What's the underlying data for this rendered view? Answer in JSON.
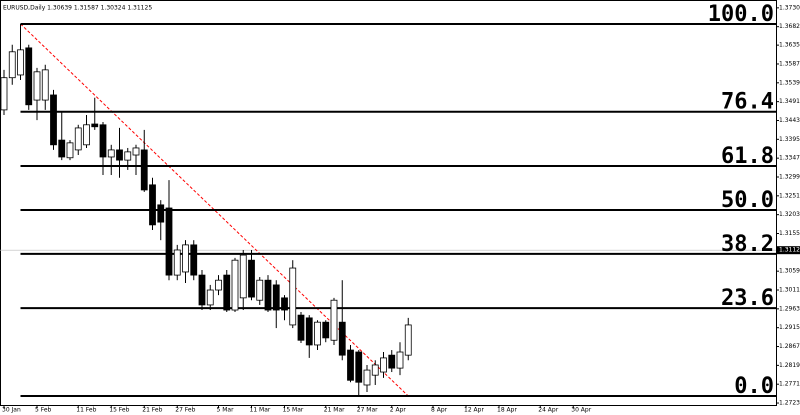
{
  "chart_data": {
    "type": "candlestick",
    "title": "EURUSD,Daily  1.30639 1.31587 1.30324 1.31125",
    "categories": [
      "30 Jan",
      null,
      null,
      null,
      "5 Feb",
      null,
      null,
      null,
      null,
      "11 Feb",
      null,
      null,
      null,
      "15 Feb",
      null,
      null,
      null,
      "21 Feb",
      null,
      null,
      null,
      "27 Feb",
      null,
      null,
      null,
      null,
      "5 Mar",
      null,
      null,
      null,
      "11 Mar",
      null,
      null,
      null,
      "15 Mar",
      null,
      null,
      null,
      null,
      "21 Mar",
      null,
      null,
      null,
      "27 Mar",
      null,
      null,
      null,
      "2 Apr",
      null,
      null,
      null,
      null,
      "8 Apr",
      null,
      null,
      null,
      "12 Apr",
      null,
      null,
      null,
      "18 Apr",
      null,
      null,
      null,
      null,
      "24 Apr",
      null,
      null,
      null,
      "30 Apr",
      null,
      null
    ],
    "open": [
      1.347,
      1.3552,
      1.3559,
      1.3628,
      1.3495,
      1.3495,
      1.3508,
      1.3393,
      1.3348,
      1.3368,
      1.3381,
      1.3434,
      1.3432,
      1.335,
      1.3368,
      1.3342,
      1.3355,
      1.3368,
      1.3279,
      1.3228,
      1.322,
      1.3049,
      1.3057,
      1.3126,
      1.3049,
      1.2973,
      1.3011,
      1.3049,
      1.296,
      1.2991,
      1.3087,
      1.2985,
      1.3036,
      1.3024,
      1.2991,
      1.2922,
      1.2947,
      1.294,
      1.2871,
      1.2929,
      1.2883,
      1.2929,
      1.2858,
      1.2853,
      1.2769,
      1.2794,
      1.2802,
      1.2845,
      1.2812,
      1.2845,
      null,
      null,
      null,
      null,
      null,
      null,
      null,
      null,
      null,
      null,
      null,
      null,
      null,
      null,
      null,
      null,
      null,
      null,
      null,
      null,
      null,
      null
    ],
    "high": [
      1.3572,
      1.3636,
      1.3689,
      1.3636,
      1.3577,
      1.3585,
      1.3521,
      1.3465,
      1.3393,
      1.3432,
      1.3457,
      1.3501,
      1.3439,
      1.3381,
      1.3424,
      1.3373,
      1.3381,
      1.3419,
      1.3297,
      1.324,
      1.3291,
      1.3126,
      1.3138,
      1.3138,
      1.3062,
      1.3024,
      1.3049,
      1.3062,
      1.3093,
      1.3113,
      1.3113,
      1.3044,
      1.3049,
      1.3036,
      1.2998,
      1.3087,
      1.2955,
      1.2947,
      1.2934,
      1.2934,
      1.2991,
      1.3036,
      1.2871,
      1.2858,
      1.282,
      1.2832,
      1.2853,
      1.2858,
      1.2878,
      1.294,
      null,
      null,
      null,
      null,
      null,
      null,
      null,
      null,
      null,
      null,
      null,
      null,
      null,
      null,
      null,
      null,
      null,
      null,
      null,
      null,
      null,
      null
    ],
    "low": [
      1.3457,
      1.3534,
      1.3546,
      1.347,
      1.3444,
      1.347,
      1.3368,
      1.3342,
      1.3342,
      1.3355,
      1.3373,
      1.3419,
      1.3304,
      1.3304,
      1.3297,
      1.3317,
      1.3304,
      1.3261,
      1.3164,
      1.3138,
      1.3036,
      1.3036,
      1.3029,
      1.3036,
      1.296,
      1.296,
      1.2998,
      1.2955,
      1.2955,
      1.296,
      1.2985,
      1.2973,
      1.2955,
      1.2914,
      1.2934,
      1.2914,
      1.2876,
      1.2838,
      1.2858,
      1.2878,
      1.2871,
      1.2832,
      1.2776,
      1.2741,
      1.2751,
      1.2769,
      1.2787,
      1.2802,
      1.2794,
      1.2832,
      null,
      null,
      null,
      null,
      null,
      null,
      null,
      null,
      null,
      null,
      null,
      null,
      null,
      null,
      null,
      null,
      null,
      null,
      null,
      null,
      null,
      null
    ],
    "close": [
      1.3552,
      1.3618,
      1.3623,
      1.3483,
      1.3567,
      1.3572,
      1.3381,
      1.335,
      1.3386,
      1.3424,
      1.3432,
      1.3427,
      1.335,
      1.3368,
      1.3342,
      1.3363,
      1.3373,
      1.3266,
      1.3177,
      1.3184,
      1.3049,
      1.3113,
      1.3126,
      1.3049,
      1.2973,
      1.3011,
      1.3036,
      1.296,
      1.3087,
      1.31,
      1.2993,
      1.3036,
      1.296,
      1.296,
      1.296,
      1.3067,
      1.2883,
      1.2871,
      1.2929,
      1.2889,
      1.2985,
      1.2845,
      1.2781,
      1.2776,
      1.2807,
      1.282,
      1.2838,
      1.2812,
      1.2853,
      1.2922,
      null,
      null,
      null,
      null,
      null,
      null,
      null,
      null,
      null,
      null,
      null,
      null,
      null,
      null,
      null,
      null,
      null,
      null,
      null,
      null,
      null,
      null
    ],
    "up_color": "#ffffff",
    "down_color": "#000000",
    "ylim": [
      1.2718,
      1.375
    ],
    "yticks": [
      {
        "value": 1.373,
        "label": "1.37300"
      },
      {
        "value": 1.3682,
        "label": "1.36820"
      },
      {
        "value": 1.3635,
        "label": "1.36350"
      },
      {
        "value": 1.3587,
        "label": "1.35870"
      },
      {
        "value": 1.3539,
        "label": "1.35390"
      },
      {
        "value": 1.3491,
        "label": "1.34910"
      },
      {
        "value": 1.3443,
        "label": "1.34430"
      },
      {
        "value": 1.3395,
        "label": "1.33950"
      },
      {
        "value": 1.3347,
        "label": "1.33470"
      },
      {
        "value": 1.3299,
        "label": "1.32990"
      },
      {
        "value": 1.3251,
        "label": "1.32510"
      },
      {
        "value": 1.3203,
        "label": "1.32030"
      },
      {
        "value": 1.3155,
        "label": "1.31550"
      },
      {
        "value": 1.3059,
        "label": "1.30590"
      },
      {
        "value": 1.3011,
        "label": "1.30110"
      },
      {
        "value": 1.2963,
        "label": "1.29630"
      },
      {
        "value": 1.2915,
        "label": "1.29150"
      },
      {
        "value": 1.2867,
        "label": "1.28670"
      },
      {
        "value": 1.2819,
        "label": "1.28190"
      },
      {
        "value": 1.2771,
        "label": "1.27710"
      },
      {
        "value": 1.2723,
        "label": "1.27230"
      }
    ],
    "current_price": {
      "value": 1.31125,
      "label": "1.31125"
    },
    "grid": false,
    "fib": {
      "high": 1.3689,
      "low": 1.2741,
      "color": "#ff0000",
      "levels": [
        {
          "value": 100,
          "label": "100.0"
        },
        76.4,
        61.8,
        {
          "value": 50,
          "label": "50.0"
        },
        38.2,
        23.6,
        {
          "value": 0,
          "label": "0.0"
        }
      ]
    }
  }
}
